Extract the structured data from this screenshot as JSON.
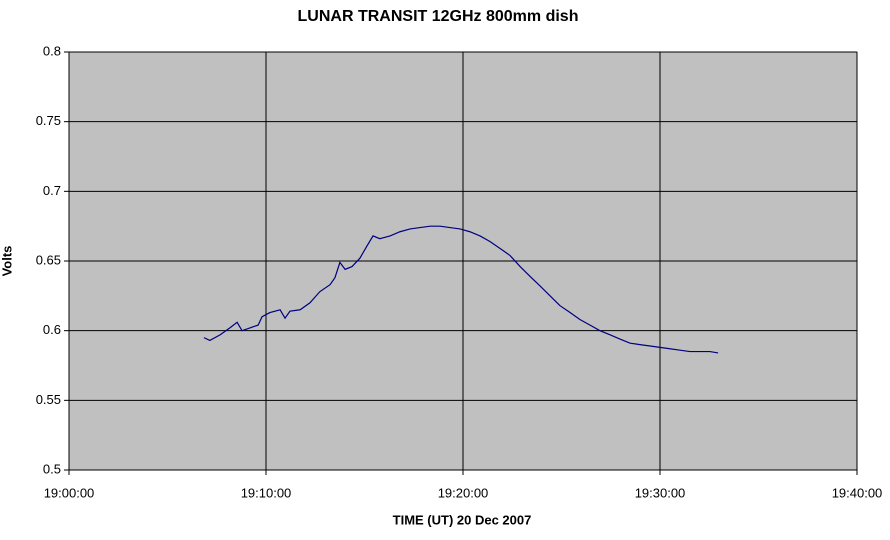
{
  "chart_data": {
    "type": "line",
    "title": "LUNAR TRANSIT  12GHz  800mm dish",
    "x_label": "TIME (UT) 20 Dec 2007",
    "y_label": "Volts",
    "x": [
      "19:06:51",
      "19:07:09",
      "19:07:40",
      "19:08:10",
      "19:08:32",
      "19:08:47",
      "19:09:11",
      "19:09:36",
      "19:09:48",
      "19:10:12",
      "19:10:43",
      "19:10:58",
      "19:11:13",
      "19:11:44",
      "19:12:14",
      "19:12:44",
      "19:13:15",
      "19:13:30",
      "19:13:45",
      "19:14:01",
      "19:14:22",
      "19:14:46",
      "19:15:08",
      "19:15:26",
      "19:15:47",
      "19:16:18",
      "19:16:48",
      "19:17:19",
      "19:17:49",
      "19:18:20",
      "19:18:50",
      "19:19:20",
      "19:19:51",
      "19:20:21",
      "19:20:52",
      "19:21:22",
      "19:21:53",
      "19:22:23",
      "19:22:54",
      "19:23:24",
      "19:23:55",
      "19:24:25",
      "19:24:55",
      "19:25:26",
      "19:25:56",
      "19:26:27",
      "19:26:57",
      "19:27:28",
      "19:27:58",
      "19:28:29",
      "19:28:59",
      "19:29:30",
      "19:30:00",
      "19:30:30",
      "19:31:01",
      "19:31:31",
      "19:32:02",
      "19:32:32",
      "19:32:57"
    ],
    "values": [
      0.595,
      0.593,
      0.597,
      0.602,
      0.606,
      0.6,
      0.602,
      0.604,
      0.61,
      0.613,
      0.615,
      0.609,
      0.614,
      0.615,
      0.62,
      0.628,
      0.633,
      0.638,
      0.649,
      0.644,
      0.646,
      0.652,
      0.661,
      0.668,
      0.666,
      0.668,
      0.671,
      0.673,
      0.674,
      0.675,
      0.675,
      0.674,
      0.673,
      0.671,
      0.668,
      0.664,
      0.659,
      0.654,
      0.646,
      0.639,
      0.632,
      0.625,
      0.618,
      0.613,
      0.608,
      0.604,
      0.6,
      0.597,
      0.594,
      0.591,
      0.59,
      0.589,
      0.588,
      0.587,
      0.586,
      0.585,
      0.585,
      0.585,
      0.584
    ],
    "color": "#000080",
    "xlim": [
      "19:00:00",
      "19:40:00"
    ],
    "xticks": [
      "19:00:00",
      "19:10:00",
      "19:20:00",
      "19:30:00",
      "19:40:00"
    ],
    "ylim": [
      0.5,
      0.8
    ],
    "yticks": [
      0.5,
      0.55,
      0.6,
      0.65,
      0.7,
      0.75,
      0.8
    ],
    "grid": true,
    "background": "#c0c0c0"
  }
}
